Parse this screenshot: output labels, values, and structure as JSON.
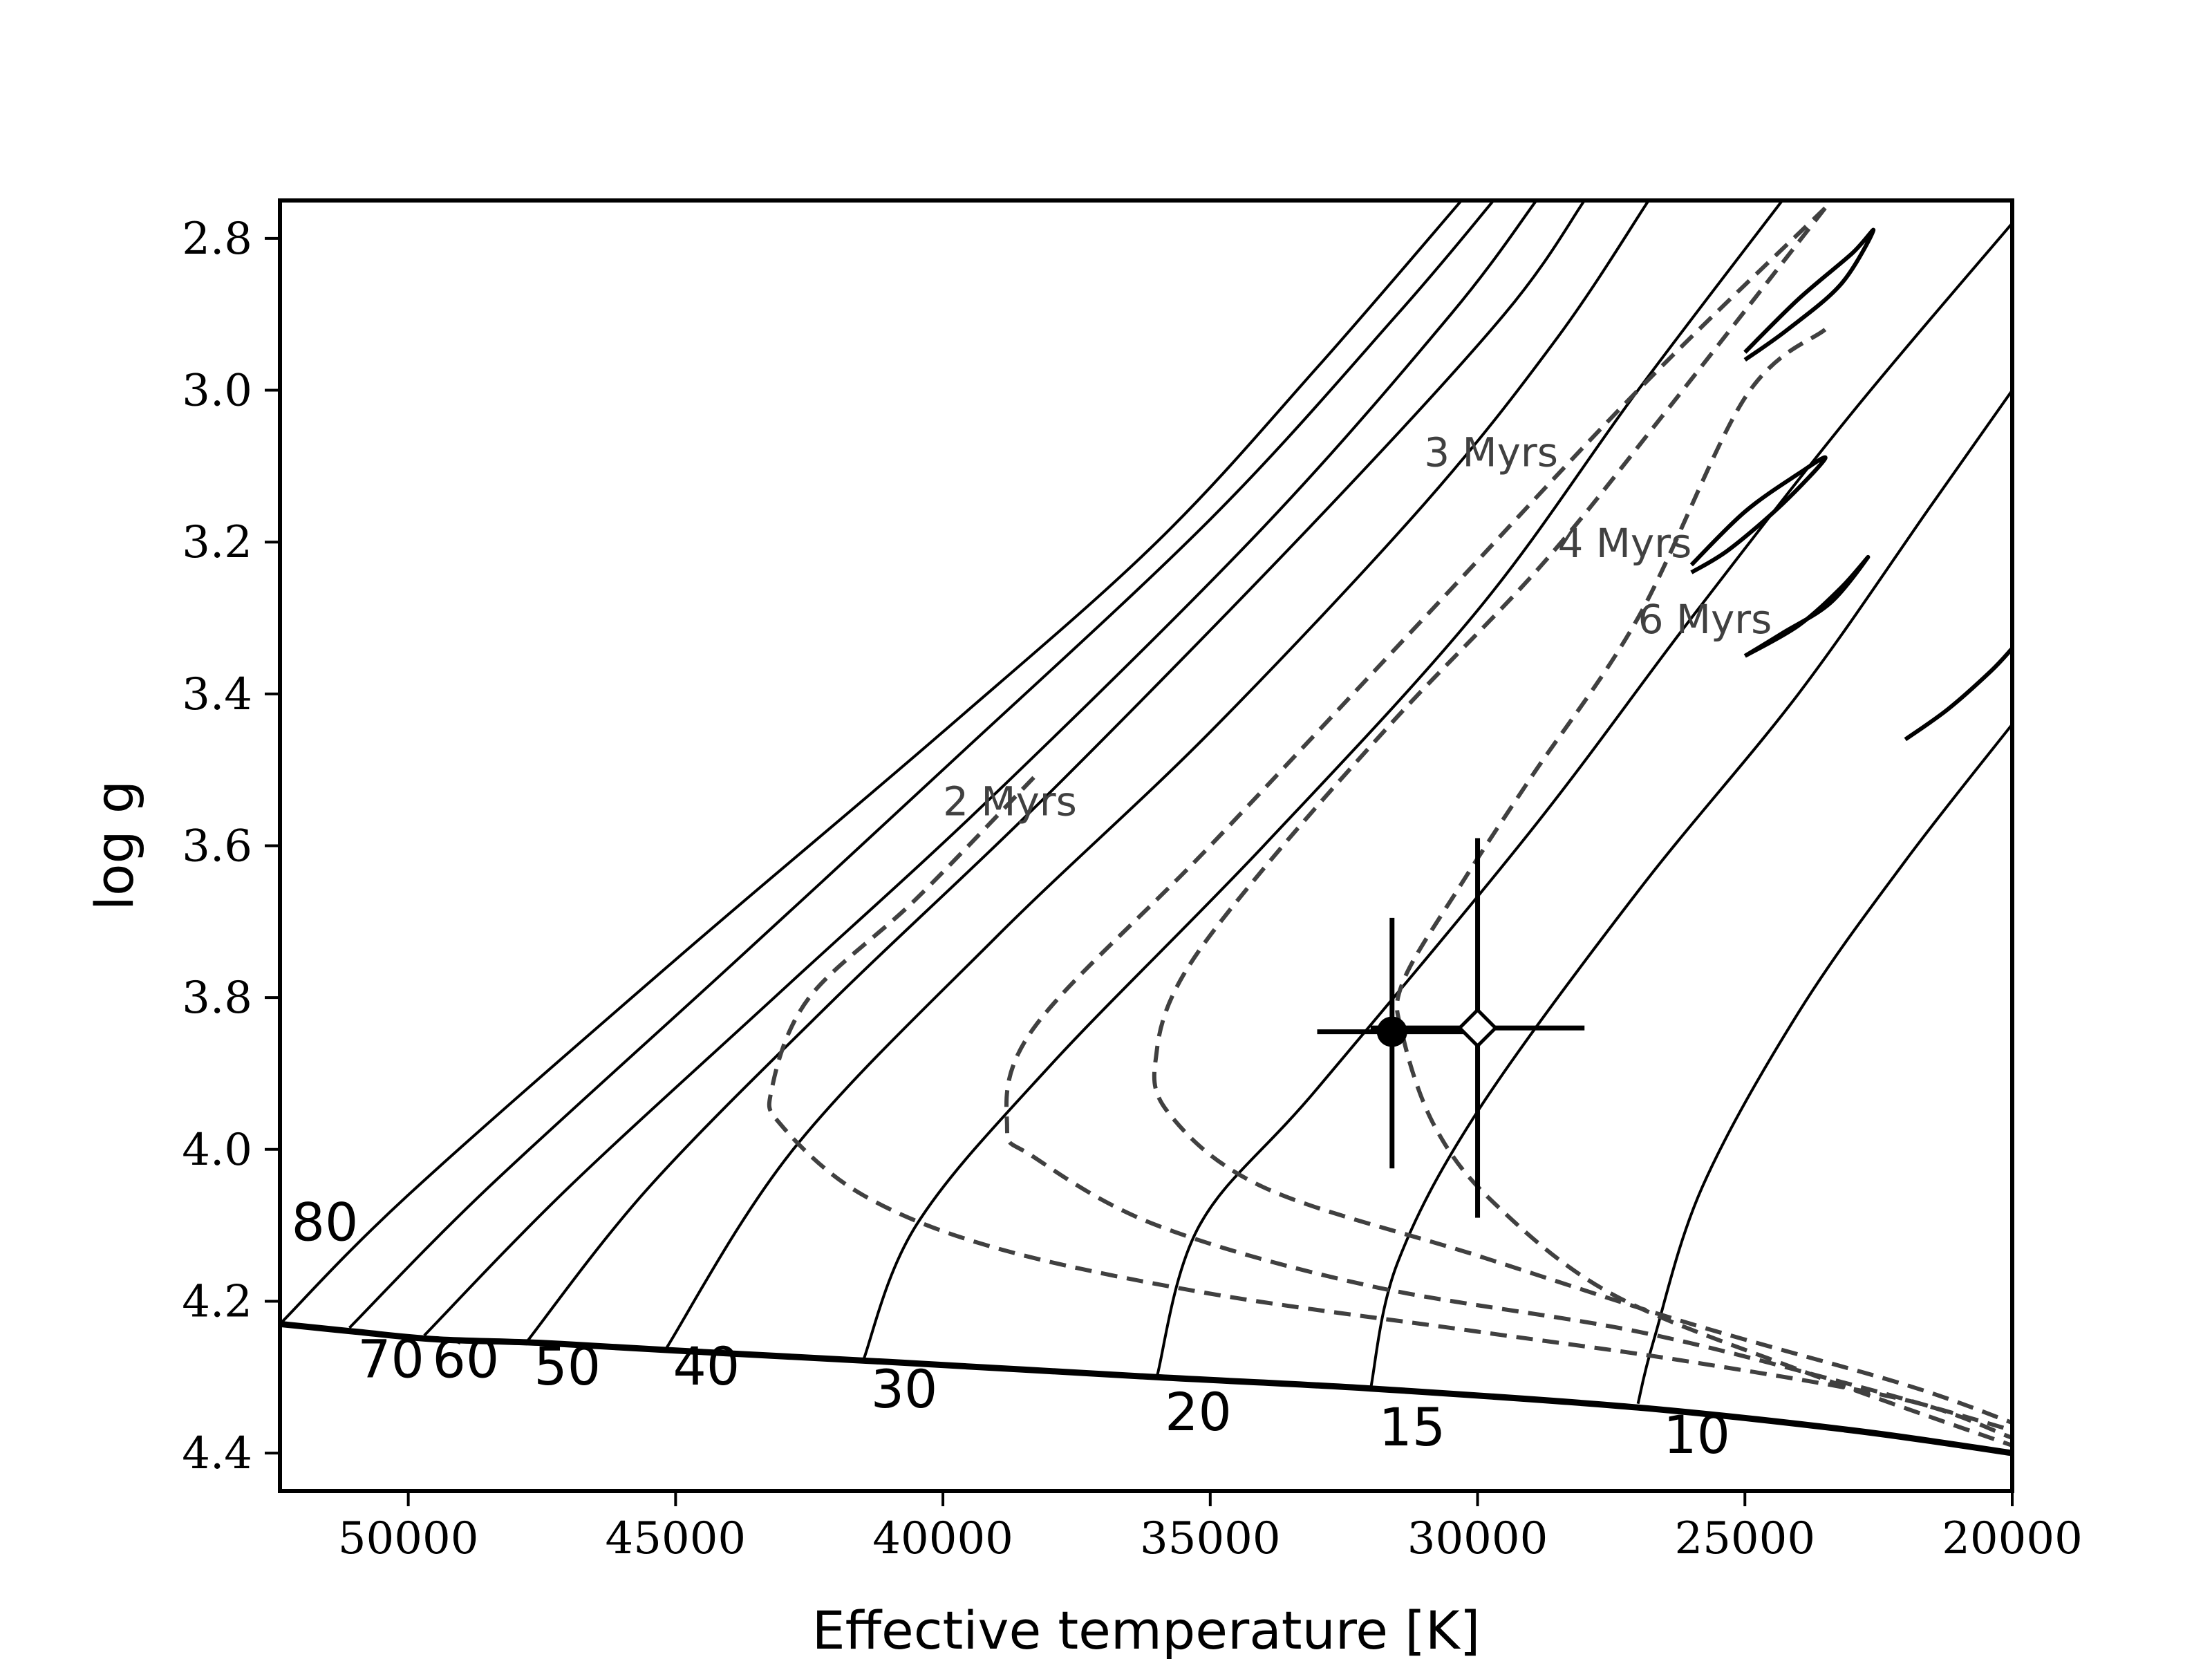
{
  "chart_data": {
    "type": "line",
    "xlabel": "Effective temperature [K]",
    "ylabel": "log g",
    "xlim": [
      52400,
      20000
    ],
    "ylim": [
      4.45,
      2.75
    ],
    "x_ticks": [
      50000,
      45000,
      40000,
      35000,
      30000,
      25000,
      20000
    ],
    "y_ticks": [
      2.8,
      3.0,
      3.2,
      3.4,
      3.6,
      3.8,
      4.0,
      4.2,
      4.4
    ],
    "zams": [
      [
        52400,
        4.23
      ],
      [
        51000,
        4.24
      ],
      [
        49500,
        4.25
      ],
      [
        47500,
        4.255
      ],
      [
        45000,
        4.265
      ],
      [
        41000,
        4.28
      ],
      [
        36000,
        4.3
      ],
      [
        32000,
        4.315
      ],
      [
        27000,
        4.34
      ],
      [
        23000,
        4.37
      ],
      [
        20000,
        4.4
      ]
    ],
    "tracks": [
      {
        "label": "80",
        "points": [
          [
            52400,
            4.23
          ],
          [
            50000,
            4.06
          ],
          [
            45000,
            3.75
          ],
          [
            40000,
            3.45
          ],
          [
            36000,
            3.2
          ],
          [
            33000,
            2.97
          ],
          [
            30300,
            2.75
          ]
        ]
      },
      {
        "label": "70",
        "points": [
          [
            51100,
            4.235
          ],
          [
            48500,
            4.05
          ],
          [
            44000,
            3.76
          ],
          [
            40000,
            3.5
          ],
          [
            35000,
            3.17
          ],
          [
            31500,
            2.9
          ],
          [
            29700,
            2.75
          ]
        ]
      },
      {
        "label": "60",
        "points": [
          [
            49700,
            4.245
          ],
          [
            47000,
            4.05
          ],
          [
            43000,
            3.79
          ],
          [
            39000,
            3.53
          ],
          [
            34000,
            3.18
          ],
          [
            30500,
            2.9
          ],
          [
            28900,
            2.75
          ]
        ]
      },
      {
        "label": "50",
        "points": [
          [
            47800,
            4.255
          ],
          [
            45500,
            4.05
          ],
          [
            42000,
            3.8
          ],
          [
            38000,
            3.53
          ],
          [
            33000,
            3.17
          ],
          [
            29500,
            2.9
          ],
          [
            28000,
            2.75
          ]
        ]
      },
      {
        "label": "40",
        "points": [
          [
            45200,
            4.265
          ],
          [
            42800,
            4.0
          ],
          [
            39000,
            3.72
          ],
          [
            35000,
            3.45
          ],
          [
            31000,
            3.15
          ],
          [
            28500,
            2.93
          ],
          [
            26800,
            2.75
          ]
        ]
      },
      {
        "label": "30",
        "points": [
          [
            41500,
            4.28
          ],
          [
            40500,
            4.1
          ],
          [
            38000,
            3.89
          ],
          [
            34000,
            3.6
          ],
          [
            30000,
            3.29
          ],
          [
            27000,
            3.0
          ],
          [
            24300,
            2.75
          ]
        ]
      },
      {
        "label": "20",
        "points": [
          [
            36000,
            4.3
          ],
          [
            35200,
            4.1
          ],
          [
            33000,
            3.92
          ],
          [
            29000,
            3.58
          ],
          [
            26000,
            3.3
          ],
          [
            23000,
            3.03
          ],
          [
            20000,
            2.78
          ]
        ]
      },
      {
        "label": "15",
        "points": [
          [
            32000,
            4.315
          ],
          [
            31500,
            4.15
          ],
          [
            30000,
            3.95
          ],
          [
            27000,
            3.66
          ],
          [
            24000,
            3.4
          ],
          [
            21500,
            3.15
          ],
          [
            20000,
            3.0
          ]
        ]
      },
      {
        "label": "10",
        "points": [
          [
            27000,
            4.335
          ],
          [
            26700,
            4.25
          ],
          [
            25800,
            4.05
          ],
          [
            24000,
            3.82
          ],
          [
            22000,
            3.62
          ],
          [
            20000,
            3.44
          ]
        ]
      }
    ],
    "track_hooks": [
      [
        [
          25000,
          2.95
        ],
        [
          24000,
          2.88
        ],
        [
          23000,
          2.82
        ],
        [
          22600,
          2.79
        ],
        [
          23200,
          2.86
        ],
        [
          24200,
          2.92
        ],
        [
          25000,
          2.96
        ]
      ],
      [
        [
          26000,
          3.23
        ],
        [
          25000,
          3.16
        ],
        [
          24000,
          3.11
        ],
        [
          23500,
          3.09
        ],
        [
          24300,
          3.15
        ],
        [
          25300,
          3.21
        ],
        [
          26000,
          3.24
        ]
      ],
      [
        [
          25000,
          3.35
        ],
        [
          24000,
          3.31
        ],
        [
          23200,
          3.26
        ],
        [
          22700,
          3.22
        ],
        [
          23400,
          3.28
        ],
        [
          24300,
          3.32
        ],
        [
          25000,
          3.35
        ]
      ],
      [
        [
          22000,
          3.46
        ],
        [
          21200,
          3.42
        ],
        [
          20400,
          3.37
        ],
        [
          20000,
          3.34
        ]
      ]
    ],
    "isochrones": [
      {
        "label": "2 Myrs",
        "points": [
          [
            38300,
            3.51
          ],
          [
            40500,
            3.67
          ],
          [
            42500,
            3.8
          ],
          [
            43200,
            3.92
          ],
          [
            43000,
            3.97
          ],
          [
            41500,
            4.06
          ],
          [
            39000,
            4.13
          ],
          [
            35000,
            4.19
          ],
          [
            30000,
            4.24
          ],
          [
            26000,
            4.28
          ],
          [
            22000,
            4.33
          ],
          [
            20000,
            4.38
          ]
        ]
      },
      {
        "label": "3 Myrs",
        "points": [
          [
            23500,
            2.76
          ],
          [
            27000,
            3.0
          ],
          [
            31000,
            3.3
          ],
          [
            35000,
            3.6
          ],
          [
            38300,
            3.84
          ],
          [
            38800,
            3.97
          ],
          [
            38300,
            4.01
          ],
          [
            36000,
            4.1
          ],
          [
            32000,
            4.18
          ],
          [
            27000,
            4.24
          ],
          [
            23000,
            4.31
          ],
          [
            20000,
            4.37
          ]
        ]
      },
      {
        "label": "4 Myrs",
        "points": [
          [
            23500,
            2.76
          ],
          [
            26500,
            3.03
          ],
          [
            28800,
            3.23
          ],
          [
            31500,
            3.43
          ],
          [
            34000,
            3.63
          ],
          [
            35500,
            3.77
          ],
          [
            36000,
            3.87
          ],
          [
            35800,
            3.95
          ],
          [
            34000,
            4.05
          ],
          [
            30000,
            4.14
          ],
          [
            26000,
            4.23
          ],
          [
            22000,
            4.31
          ],
          [
            20000,
            4.36
          ]
        ]
      },
      {
        "label": "6 Myrs",
        "points": [
          [
            23500,
            2.92
          ],
          [
            25000,
            3.01
          ],
          [
            27000,
            3.3
          ],
          [
            29000,
            3.51
          ],
          [
            30300,
            3.65
          ],
          [
            31400,
            3.78
          ],
          [
            31400,
            3.85
          ],
          [
            30800,
            3.97
          ],
          [
            29700,
            4.07
          ],
          [
            27500,
            4.19
          ],
          [
            24000,
            4.29
          ],
          [
            20000,
            4.39
          ]
        ]
      }
    ],
    "isochrone_label_positions": [
      [
        40000,
        3.56
      ],
      [
        31000,
        3.1
      ],
      [
        28500,
        3.22
      ],
      [
        27000,
        3.32
      ]
    ],
    "points": [
      {
        "marker": "filled-circle",
        "x": 31600,
        "y": 3.845,
        "xerr": [
          1400,
          1400
        ],
        "yerr": [
          0.15,
          0.18
        ]
      },
      {
        "marker": "open-diamond",
        "x": 30000,
        "y": 3.84,
        "xerr": [
          2000,
          2000
        ],
        "yerr": [
          0.25,
          0.25
        ]
      }
    ]
  }
}
